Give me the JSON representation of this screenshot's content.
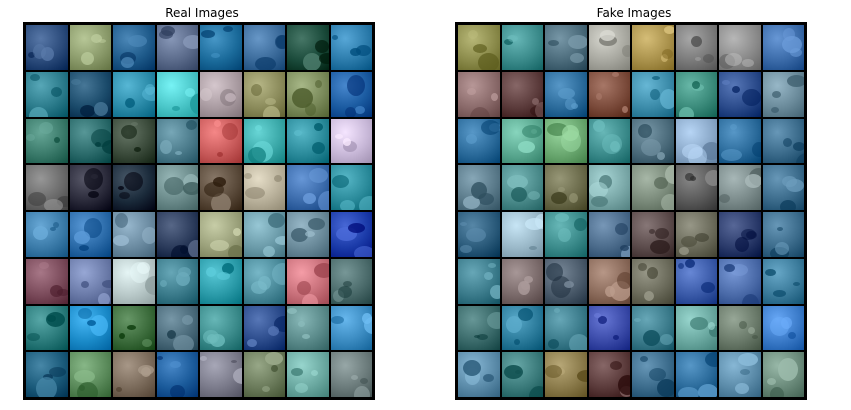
{
  "panels": [
    {
      "title": "Real Images",
      "rows": 8,
      "cols": 8,
      "tiles": [
        [
          "#2a4a7a",
          "#8a9a6a",
          "#1e5a8a",
          "#5a6a8a",
          "#1a6a9a",
          "#3a6a9a",
          "#1a4a3a",
          "#2a7aaa"
        ],
        [
          "#2a7a8a",
          "#1a4a6a",
          "#2a8aa8",
          "#4ac6c8",
          "#a89aa0",
          "#8a8a5a",
          "#7a8a5a",
          "#1a5aa0"
        ],
        [
          "#3a7a6a",
          "#2a6a6a",
          "#3a4a3a",
          "#4a7a8a",
          "#c85a5a",
          "#3aa8a8",
          "#2a8a9a",
          "#c8b8d8"
        ],
        [
          "#6a6a6a",
          "#2a2a3a",
          "#1a2a3a",
          "#6a8a8a",
          "#5a4a3a",
          "#b8b09a",
          "#3a6aaa",
          "#2a8a9a"
        ],
        [
          "#3a7aa8",
          "#2a6aa8",
          "#6a8aa0",
          "#2a3a5a",
          "#9aa07a",
          "#6a9aa8",
          "#6a8a9a",
          "#1a3aa8"
        ],
        [
          "#7a4a5a",
          "#6a7aa8",
          "#b8c8c8",
          "#3a7a8a",
          "#2a9aa8",
          "#4a8a9a",
          "#c8707a",
          "#4a6a6a"
        ],
        [
          "#2a7a7a",
          "#1a8ac8",
          "#3a6a3a",
          "#4a6a7a",
          "#3a8a8a",
          "#2a4a8a",
          "#5a8a8a",
          "#3a8ac0"
        ],
        [
          "#1a5a7a",
          "#5a8a5a",
          "#7a6a5a",
          "#1a5a9a",
          "#7a7a8a",
          "#6a7a5a",
          "#6aa8a0",
          "#6a7a7a"
        ]
      ]
    },
    {
      "title": "Fake Images",
      "rows": 8,
      "cols": 8,
      "tiles": [
        [
          "#8a8a4a",
          "#3a8a8a",
          "#4a6a7a",
          "#a8a8a0",
          "#a8904a",
          "#7a7a7a",
          "#8a8a8a",
          "#3a6aa8"
        ],
        [
          "#8a6a6a",
          "#5a3a3a",
          "#2a6a9a",
          "#7a4a3a",
          "#3a8aa8",
          "#3a8a7a",
          "#2a4a8a",
          "#6a8a9a"
        ],
        [
          "#2a6a9a",
          "#5aa890",
          "#6aa870",
          "#3a8a8a",
          "#4a6a7a",
          "#8aa8c8",
          "#2a6a9a",
          "#3a6a8a"
        ],
        [
          "#5a7a8a",
          "#4a8a8a",
          "#6a6a4a",
          "#7aa8a8",
          "#7a8a7a",
          "#5a5a5a",
          "#7a8a8a",
          "#3a6a8a"
        ],
        [
          "#2a5a7a",
          "#9ab8c8",
          "#3a8a8a",
          "#4a6a8a",
          "#5a4a4a",
          "#6a6a5a",
          "#2a3a6a",
          "#3a6a8a"
        ],
        [
          "#3a7a8a",
          "#7a6a6a",
          "#4a5a6a",
          "#8a6a5a",
          "#6a6a5a",
          "#3a5aa8",
          "#4a6aa8",
          "#3a7a9a"
        ],
        [
          "#3a6a6a",
          "#2a7a9a",
          "#3a7a8a",
          "#3a4aa8",
          "#3a7a8a",
          "#6aa8a0",
          "#6a7a6a",
          "#3a7ac8"
        ],
        [
          "#5a8aa8",
          "#3a7a7a",
          "#8a7a4a",
          "#5a3a3a",
          "#3a6a8a",
          "#2a6a9a",
          "#5a8aa8",
          "#6a8a7a"
        ]
      ]
    }
  ]
}
